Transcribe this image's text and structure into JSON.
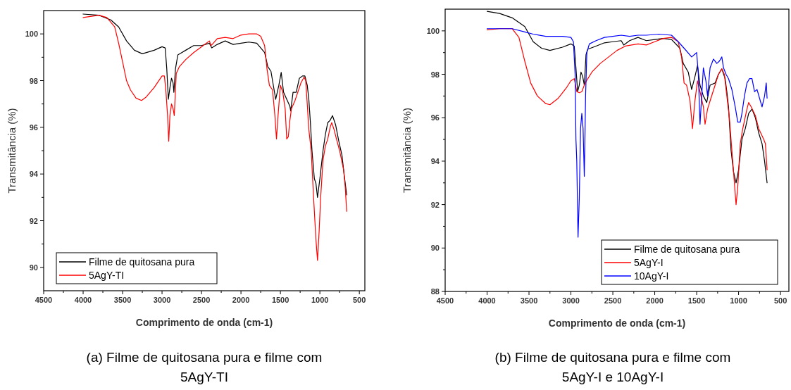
{
  "chart_data": [
    {
      "type": "line",
      "title": "(a)  Filme de quitosana pura e filme com 5AgY-TI",
      "xlabel": "Comprimento de onda (cm-1)",
      "ylabel": "Transmitância (%)",
      "xlim": [
        4500,
        430
      ],
      "ylim": [
        89,
        101
      ],
      "xticks": [
        4500,
        {
          "value": 4250,
          "label": null
        },
        4000,
        {
          "value": 3750,
          "label": null
        },
        3500,
        {
          "value": 3250,
          "label": null
        },
        3000,
        {
          "value": 2750,
          "label": null
        },
        2500,
        {
          "value": 2250,
          "label": null
        },
        2000,
        {
          "value": 1750,
          "label": null
        },
        1500,
        {
          "value": 1250,
          "label": null
        },
        1000,
        {
          "value": 750,
          "label": null
        },
        500
      ],
      "yticks": [
        90,
        {
          "value": 91,
          "label": null
        },
        92,
        {
          "value": 93,
          "label": null
        },
        94,
        {
          "value": 95,
          "label": null
        },
        96,
        {
          "value": 97,
          "label": null
        },
        98,
        {
          "value": 99,
          "label": null
        },
        100
      ],
      "legend": "bottom left",
      "grid": false,
      "marker": "none",
      "line_style": "solid",
      "series": [
        {
          "name": "Filme de quitosana pura",
          "color": "#000000",
          "x": [
            4000,
            3800,
            3650,
            3550,
            3450,
            3350,
            3250,
            3100,
            3000,
            2960,
            2940,
            2920,
            2900,
            2880,
            2860,
            2850,
            2830,
            2800,
            2700,
            2600,
            2500,
            2400,
            2370,
            2300,
            2200,
            2100,
            2000,
            1900,
            1800,
            1700,
            1660,
            1620,
            1580,
            1560,
            1520,
            1490,
            1460,
            1420,
            1380,
            1370,
            1340,
            1300,
            1260,
            1220,
            1190,
            1160,
            1140,
            1120,
            1100,
            1070,
            1050,
            1030,
            1000,
            960,
            930,
            900,
            870,
            840,
            800,
            760,
            720,
            690,
            660
          ],
          "values": [
            100.85,
            100.8,
            100.6,
            100.3,
            99.7,
            99.3,
            99.15,
            99.3,
            99.45,
            99.4,
            98.5,
            97.2,
            97.7,
            98.1,
            97.9,
            97.5,
            98.5,
            99.1,
            99.3,
            99.5,
            99.5,
            99.6,
            99.4,
            99.55,
            99.7,
            99.55,
            99.6,
            99.65,
            99.6,
            99.2,
            98.6,
            98.4,
            97.6,
            97.2,
            97.8,
            98.35,
            97.5,
            97.2,
            96.9,
            96.7,
            97.5,
            97.5,
            98.1,
            98.2,
            98.2,
            97.8,
            97.2,
            96.2,
            95.0,
            93.8,
            93.6,
            93.0,
            93.8,
            95.0,
            95.7,
            96.2,
            96.3,
            96.5,
            96.1,
            95.4,
            94.8,
            93.9,
            93.1
          ]
        },
        {
          "name": "5AgY-TI",
          "color": "#ff0000",
          "x": [
            4000,
            3800,
            3700,
            3600,
            3550,
            3500,
            3450,
            3400,
            3330,
            3260,
            3200,
            3100,
            3000,
            2970,
            2950,
            2930,
            2915,
            2900,
            2880,
            2860,
            2845,
            2820,
            2780,
            2700,
            2600,
            2500,
            2400,
            2380,
            2350,
            2300,
            2200,
            2100,
            2000,
            1900,
            1800,
            1750,
            1700,
            1670,
            1640,
            1600,
            1570,
            1550,
            1530,
            1500,
            1470,
            1440,
            1420,
            1400,
            1380,
            1360,
            1320,
            1280,
            1240,
            1200,
            1180,
            1160,
            1140,
            1110,
            1080,
            1050,
            1030,
            1010,
            990,
            960,
            930,
            900,
            870,
            850,
            820,
            790,
            750,
            700,
            680,
            660
          ],
          "values": [
            100.7,
            100.8,
            100.7,
            100.3,
            99.6,
            98.8,
            98.0,
            97.6,
            97.25,
            97.15,
            97.3,
            97.7,
            98.2,
            98.2,
            97.5,
            96.5,
            95.4,
            96.5,
            97.0,
            96.8,
            96.5,
            98.3,
            98.6,
            98.9,
            99.2,
            99.45,
            99.7,
            99.5,
            99.6,
            99.8,
            99.85,
            99.8,
            99.95,
            100.0,
            100.0,
            99.9,
            99.5,
            98.5,
            97.8,
            97.6,
            96.5,
            95.5,
            96.5,
            97.8,
            97.5,
            96.8,
            95.5,
            95.6,
            96.3,
            96.8,
            97.1,
            97.5,
            97.9,
            98.15,
            98.0,
            97.0,
            95.9,
            95.0,
            93.0,
            91.2,
            90.3,
            91.5,
            93.0,
            94.6,
            95.2,
            95.5,
            96.0,
            96.2,
            95.9,
            95.5,
            95.0,
            94.2,
            93.5,
            92.4
          ]
        }
      ]
    },
    {
      "type": "line",
      "title": "(b)  Filme de quitosana pura e filme com 5AgY-I e 10AgY-I",
      "xlabel": "Comprimento de onda (cm-1)",
      "ylabel": "Transmitância (%)",
      "xlim": [
        4500,
        400
      ],
      "ylim": [
        88,
        101
      ],
      "xticks": [
        4500,
        {
          "value": 4250,
          "label": null
        },
        4000,
        {
          "value": 3750,
          "label": null
        },
        3500,
        {
          "value": 3250,
          "label": null
        },
        3000,
        {
          "value": 2750,
          "label": null
        },
        2500,
        {
          "value": 2250,
          "label": null
        },
        2000,
        {
          "value": 1750,
          "label": null
        },
        1500,
        {
          "value": 1250,
          "label": null
        },
        1000,
        {
          "value": 750,
          "label": null
        },
        500
      ],
      "yticks": [
        88,
        {
          "value": 89,
          "label": null
        },
        90,
        {
          "value": 91,
          "label": null
        },
        92,
        {
          "value": 93,
          "label": null
        },
        94,
        {
          "value": 95,
          "label": null
        },
        96,
        {
          "value": 97,
          "label": null
        },
        98,
        {
          "value": 99,
          "label": null
        },
        100
      ],
      "legend": "bottom right",
      "grid": false,
      "marker": "none",
      "line_style": "solid",
      "series": [
        {
          "name": "Filme de quitosana pura",
          "color": "#000000",
          "x": [
            4000,
            3850,
            3700,
            3550,
            3450,
            3350,
            3250,
            3100,
            3000,
            2960,
            2940,
            2920,
            2900,
            2880,
            2860,
            2840,
            2820,
            2800,
            2700,
            2600,
            2500,
            2400,
            2370,
            2300,
            2200,
            2100,
            2000,
            1900,
            1800,
            1700,
            1660,
            1600,
            1560,
            1520,
            1490,
            1460,
            1420,
            1380,
            1340,
            1280,
            1240,
            1200,
            1160,
            1140,
            1120,
            1090,
            1060,
            1030,
            1000,
            960,
            920,
            880,
            840,
            800,
            760,
            720,
            690,
            660
          ],
          "values": [
            100.9,
            100.8,
            100.6,
            100.2,
            99.5,
            99.2,
            99.1,
            99.25,
            99.4,
            99.3,
            98.3,
            97.2,
            97.5,
            98.1,
            97.9,
            97.5,
            98.9,
            99.15,
            99.3,
            99.45,
            99.5,
            99.55,
            99.35,
            99.55,
            99.7,
            99.55,
            99.6,
            99.65,
            99.6,
            99.2,
            98.5,
            98.1,
            97.3,
            97.9,
            98.4,
            97.5,
            97.0,
            96.7,
            97.5,
            97.6,
            98.0,
            98.25,
            97.8,
            97.2,
            96.5,
            94.5,
            93.5,
            93.0,
            93.6,
            95.0,
            95.5,
            96.2,
            96.4,
            96.0,
            95.3,
            94.8,
            94.0,
            93.0
          ]
        },
        {
          "name": "5AgY-I",
          "color": "#ff0000",
          "x": [
            4000,
            3850,
            3700,
            3620,
            3550,
            3480,
            3400,
            3300,
            3250,
            3150,
            3050,
            3000,
            2960,
            2930,
            2900,
            2870,
            2850,
            2830,
            2750,
            2650,
            2550,
            2450,
            2350,
            2200,
            2100,
            2000,
            1900,
            1800,
            1720,
            1680,
            1650,
            1620,
            1580,
            1550,
            1520,
            1490,
            1460,
            1420,
            1400,
            1370,
            1330,
            1280,
            1240,
            1200,
            1170,
            1140,
            1110,
            1080,
            1050,
            1030,
            1010,
            980,
            950,
            900,
            880,
            850,
            800,
            760,
            700,
            680,
            660
          ],
          "values": [
            100.05,
            100.1,
            100.1,
            99.7,
            98.6,
            97.6,
            97.0,
            96.65,
            96.6,
            96.9,
            97.4,
            97.7,
            97.8,
            97.2,
            97.15,
            97.2,
            97.4,
            97.6,
            98.1,
            98.5,
            98.8,
            99.1,
            99.3,
            99.4,
            99.35,
            99.5,
            99.65,
            99.7,
            99.5,
            98.8,
            97.6,
            97.5,
            96.8,
            95.5,
            96.8,
            97.7,
            97.2,
            96.5,
            95.7,
            96.4,
            96.9,
            97.5,
            98.0,
            98.25,
            98.0,
            97.0,
            96.0,
            94.5,
            93.0,
            92.0,
            92.8,
            94.8,
            95.5,
            96.4,
            96.7,
            96.5,
            96.1,
            95.5,
            95.0,
            94.8,
            93.6
          ]
        },
        {
          "name": "10AgY-I",
          "color": "#0000ff",
          "x": [
            4000,
            3850,
            3700,
            3550,
            3450,
            3300,
            3100,
            3000,
            2970,
            2950,
            2940,
            2930,
            2915,
            2900,
            2885,
            2870,
            2855,
            2840,
            2825,
            2810,
            2780,
            2700,
            2600,
            2500,
            2400,
            2300,
            2200,
            2100,
            1950,
            1800,
            1720,
            1650,
            1560,
            1500,
            1480,
            1460,
            1440,
            1420,
            1390,
            1370,
            1340,
            1300,
            1260,
            1230,
            1200,
            1180,
            1150,
            1120,
            1080,
            1040,
            1010,
            980,
            960,
            930,
            900,
            870,
            840,
            810,
            780,
            750,
            720,
            690,
            670,
            660
          ],
          "values": [
            100.1,
            100.1,
            100.1,
            99.95,
            99.85,
            99.75,
            99.75,
            99.7,
            99.5,
            98.0,
            95.0,
            94.0,
            90.5,
            92.3,
            95.5,
            96.2,
            95.5,
            93.3,
            97.0,
            99.0,
            99.4,
            99.55,
            99.7,
            99.75,
            99.8,
            99.75,
            99.8,
            99.8,
            99.85,
            99.8,
            99.5,
            99.2,
            98.8,
            99.0,
            98.0,
            95.7,
            97.0,
            98.3,
            97.7,
            97.0,
            98.3,
            98.7,
            98.5,
            98.6,
            98.8,
            98.3,
            98.0,
            97.8,
            97.3,
            96.5,
            95.8,
            95.8,
            96.2,
            97.0,
            97.6,
            97.8,
            97.8,
            97.2,
            97.3,
            96.9,
            96.5,
            97.0,
            97.6,
            96.9
          ]
        }
      ]
    }
  ]
}
